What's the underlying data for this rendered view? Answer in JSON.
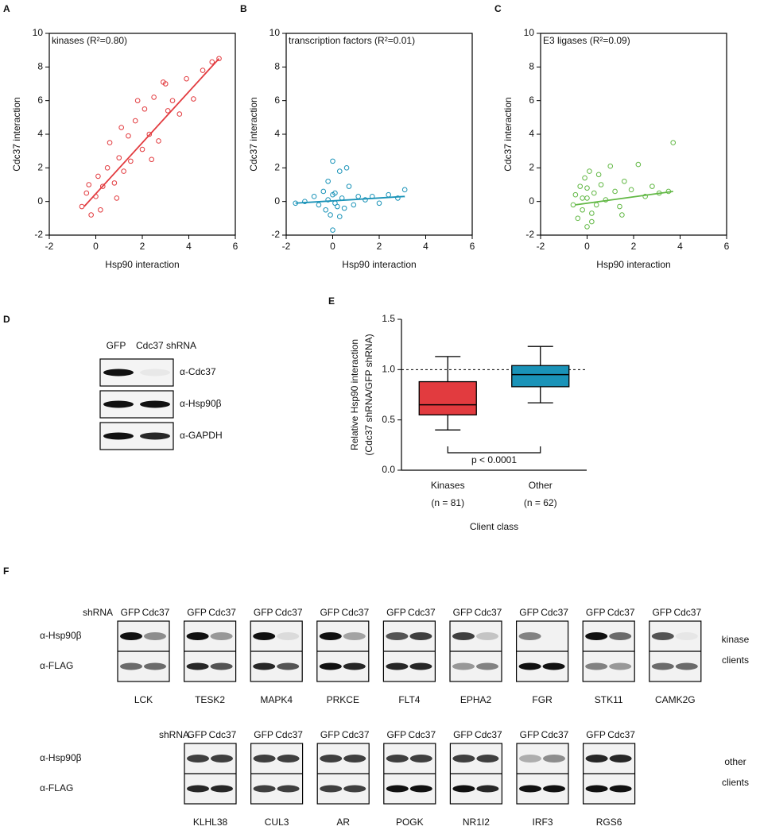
{
  "chart_data": [
    {
      "type": "scatter",
      "panel": "A",
      "annotation": "kinases (R²=0.80)",
      "xlabel": "Hsp90 interaction",
      "ylabel": "Cdc37 interaction",
      "color": "#e23b3f",
      "xlim": [
        -2,
        6
      ],
      "ylim": [
        -2,
        10
      ],
      "xticks": [
        -2,
        0,
        2,
        4,
        6
      ],
      "yticks": [
        -2,
        0,
        2,
        4,
        6,
        8,
        10
      ],
      "x": [
        -0.6,
        -0.4,
        -0.2,
        0,
        0.1,
        0.3,
        0.5,
        0.6,
        0.8,
        1.0,
        1.2,
        1.4,
        1.5,
        1.7,
        2.0,
        2.1,
        2.3,
        2.5,
        2.7,
        2.9,
        3.1,
        3.3,
        3.6,
        3.9,
        4.2,
        4.6,
        5.0,
        5.3,
        0.2,
        1.1,
        2.4,
        3.0,
        -0.3,
        0.9,
        1.8
      ],
      "y": [
        -0.3,
        0.5,
        -0.8,
        0.3,
        1.5,
        0.9,
        2.0,
        3.5,
        1.1,
        2.6,
        1.8,
        3.9,
        2.4,
        4.8,
        3.1,
        5.5,
        4.0,
        6.2,
        3.6,
        7.1,
        5.4,
        6.0,
        5.2,
        7.3,
        6.1,
        7.8,
        8.3,
        8.5,
        -0.5,
        4.4,
        2.5,
        7.0,
        1.0,
        0.2,
        6.0
      ],
      "fit": {
        "x": [
          -0.5,
          5.3
        ],
        "y": [
          -0.3,
          8.5
        ]
      }
    },
    {
      "type": "scatter",
      "panel": "B",
      "annotation": "transcription factors (R²=0.01)",
      "xlabel": "Hsp90 interaction",
      "ylabel": "Cdc37 interaction",
      "color": "#1a93b8",
      "xlim": [
        -2,
        6
      ],
      "ylim": [
        -2,
        10
      ],
      "xticks": [
        -2,
        0,
        2,
        4,
        6
      ],
      "yticks": [
        -2,
        0,
        2,
        4,
        6,
        8,
        10
      ],
      "x": [
        -1.6,
        -1.2,
        -0.8,
        -0.6,
        -0.4,
        -0.3,
        -0.2,
        -0.1,
        0,
        0,
        0.1,
        0.2,
        0.3,
        0.4,
        0.5,
        0.7,
        0.9,
        1.1,
        1.4,
        1.7,
        2.0,
        2.4,
        2.8,
        3.1,
        -0.2,
        0.1,
        0.6,
        0,
        0.3
      ],
      "y": [
        -0.1,
        0,
        0.3,
        -0.2,
        0.6,
        -0.5,
        1.2,
        -0.8,
        2.4,
        -1.7,
        0.5,
        -0.3,
        1.8,
        0.2,
        -0.4,
        0.9,
        -0.2,
        0.3,
        0.1,
        0.3,
        -0.1,
        0.4,
        0.2,
        0.7,
        0.1,
        -0.1,
        2.0,
        0.4,
        -0.9
      ],
      "fit": {
        "x": [
          -1.6,
          3.1
        ],
        "y": [
          -0.1,
          0.3
        ]
      }
    },
    {
      "type": "scatter",
      "panel": "C",
      "annotation": "E3 ligases (R²=0.09)",
      "xlabel": "Hsp90 interaction",
      "ylabel": "Cdc37 interaction",
      "color": "#62b845",
      "xlim": [
        -2,
        6
      ],
      "ylim": [
        -2,
        10
      ],
      "xticks": [
        -2,
        0,
        2,
        4,
        6
      ],
      "yticks": [
        -2,
        0,
        2,
        4,
        6,
        8,
        10
      ],
      "x": [
        -0.6,
        -0.5,
        -0.4,
        -0.3,
        -0.2,
        -0.1,
        0,
        0,
        0.1,
        0.2,
        0.3,
        0.4,
        0.6,
        0.8,
        1.0,
        1.2,
        1.4,
        1.6,
        1.9,
        2.2,
        2.5,
        2.8,
        3.1,
        3.5,
        3.7,
        0,
        0.2,
        -0.2,
        0.5,
        1.5
      ],
      "y": [
        -0.2,
        0.4,
        -1.0,
        0.9,
        -0.5,
        1.4,
        -1.5,
        0.2,
        1.8,
        -0.7,
        0.5,
        -0.2,
        1.0,
        0.1,
        2.1,
        0.6,
        -0.3,
        1.2,
        0.7,
        2.2,
        0.3,
        0.9,
        0.5,
        0.6,
        3.5,
        0.8,
        -1.2,
        0.2,
        1.6,
        -0.8
      ],
      "fit": {
        "x": [
          -0.5,
          3.7
        ],
        "y": [
          -0.2,
          0.6
        ]
      }
    },
    {
      "type": "box",
      "panel": "E",
      "ylabel": [
        "Relative Hsp90 interaction",
        "(Cdc37 shRNA/GFP shRNA)"
      ],
      "xlabel": "Client class",
      "categories": [
        "Kinases",
        "Other"
      ],
      "category_notes": [
        "(n = 81)",
        "(n = 62)"
      ],
      "colors": [
        "#e23b3f",
        "#1a93b8"
      ],
      "boxes": [
        {
          "whislo": 0.4,
          "q1": 0.55,
          "med": 0.65,
          "q3": 0.88,
          "whishi": 1.13
        },
        {
          "whislo": 0.67,
          "q1": 0.83,
          "med": 0.95,
          "q3": 1.04,
          "whishi": 1.23
        }
      ],
      "refline": 1.0,
      "annotation": "p < 0.0001",
      "ylim": [
        0,
        1.5
      ],
      "yticks": [
        {
          "value": 0,
          "label": "0.0"
        },
        {
          "value": 0.5,
          "label": "0.5"
        },
        {
          "value": 1,
          "label": "1.0"
        },
        {
          "value": 1.5,
          "label": "1.5"
        }
      ]
    }
  ],
  "blot_d": {
    "panel": "D",
    "lanes": [
      "GFP",
      "Cdc37 shRNA"
    ],
    "rows": [
      "α-Cdc37",
      "α-Hsp90β",
      "α-GAPDH"
    ]
  },
  "blot_f": {
    "panel": "F",
    "shrna": "shRNA",
    "lanes": [
      "GFP",
      "Cdc37"
    ],
    "rows": [
      "α-Hsp90β",
      "α-FLAG"
    ],
    "groups": [
      {
        "label": [
          "kinase",
          "clients"
        ],
        "clients": [
          "LCK",
          "TESK2",
          "MAPK4",
          "PRKCE",
          "FLT4",
          "EPHA2",
          "FGR",
          "STK11",
          "CAMK2G"
        ]
      },
      {
        "label": [
          "other",
          "clients"
        ],
        "clients": [
          "KLHL38",
          "CUL3",
          "AR",
          "POGK",
          "NR1I2",
          "IRF3",
          "RGS6"
        ]
      }
    ]
  }
}
